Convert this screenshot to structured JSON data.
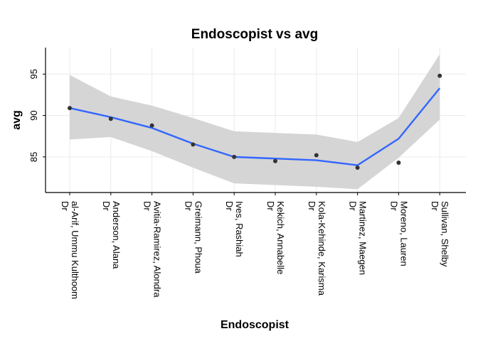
{
  "chart_data": {
    "type": "line",
    "title": "Endoscopist vs avg",
    "xlabel": "Endoscopist",
    "ylabel": "avg",
    "categories": [
      "Dr\nal-Arif, Ummu Kulthoom",
      "Dr\nAnderson, Alana",
      "Dr\nAvitia-Ramirez, Alondra",
      "Dr\nGreimann, Phoua",
      "Dr\nIves, Rashiah",
      "Dr\nKekich, Annabelle",
      "Dr\nKola-Kehinde, Karisma",
      "Dr\nMartinez, Maegen",
      "Dr\nMoreno, Lauren",
      "Dr\nSullivan, Shelby"
    ],
    "ylim": [
      80.7,
      98.2
    ],
    "yticks": [
      85,
      90,
      95
    ],
    "grid": true,
    "series": [
      {
        "kind": "points",
        "color": "#333333",
        "values": [
          90.9,
          89.6,
          88.8,
          86.5,
          85.0,
          84.5,
          85.2,
          83.7,
          84.3,
          94.8
        ]
      },
      {
        "kind": "smooth",
        "color": "#3366ff",
        "values": [
          90.9,
          89.8,
          88.5,
          86.6,
          85.0,
          84.8,
          84.6,
          84.0,
          87.2,
          93.3
        ],
        "ci_lower": [
          87.1,
          87.4,
          85.7,
          83.7,
          81.8,
          81.6,
          81.4,
          81.1,
          84.9,
          89.5
        ],
        "ci_upper": [
          94.9,
          92.3,
          91.2,
          89.7,
          88.1,
          87.9,
          87.7,
          86.8,
          89.7,
          97.4
        ],
        "ci_color": "#d5d5d5"
      }
    ]
  }
}
